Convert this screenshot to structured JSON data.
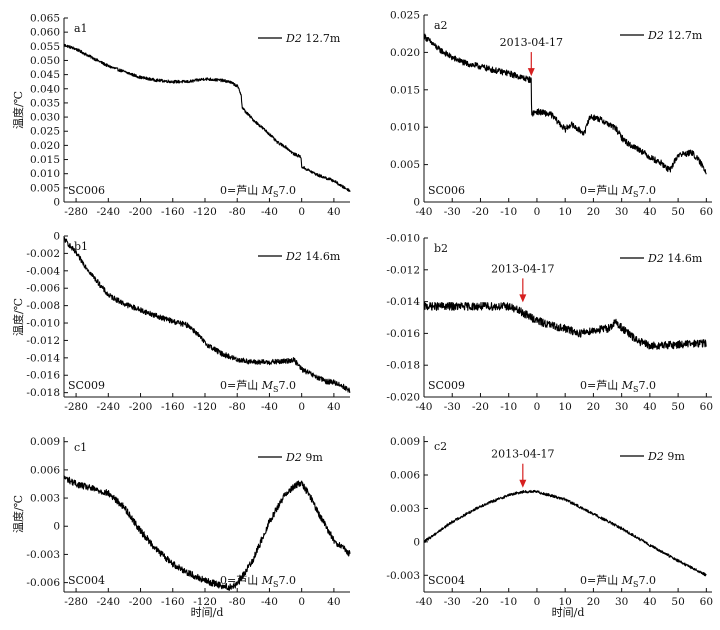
{
  "figure": {
    "ylabel": "温度/℃",
    "xlabel": "时间/d",
    "event_label_prefix": "0=芦山",
    "event_label_ms": "M",
    "event_label_sub": "S",
    "event_label_mag": "7.0",
    "date_annotation": "2013-04-17"
  },
  "chart_data": [
    {
      "id": "a1",
      "type": "line",
      "panel_label": "a1",
      "station": "SC006",
      "legend": "D2 12.7m",
      "xlim": [
        -295,
        60
      ],
      "ylim": [
        0,
        0.065
      ],
      "xticks": [
        -280,
        -240,
        -200,
        -160,
        -120,
        -80,
        -40,
        0,
        40
      ],
      "yticks": [
        0,
        0.005,
        0.01,
        0.015,
        0.02,
        0.025,
        0.03,
        0.035,
        0.04,
        0.045,
        0.05,
        0.055,
        0.06,
        0.065
      ],
      "ytick_labels": [
        "0",
        "0.005",
        "0.010",
        "0.015",
        "0.020",
        "0.025",
        "0.030",
        "0.035",
        "0.040",
        "0.045",
        "0.050",
        "0.055",
        "0.060",
        "0.065"
      ],
      "noise": 0.0005,
      "x": [
        -295,
        -280,
        -260,
        -240,
        -220,
        -200,
        -180,
        -160,
        -140,
        -120,
        -100,
        -90,
        -80,
        -75,
        -74,
        -70,
        -60,
        -50,
        -40,
        -30,
        -20,
        -10,
        -1,
        0,
        10,
        20,
        30,
        40,
        50,
        60
      ],
      "y": [
        0.0555,
        0.054,
        0.051,
        0.048,
        0.046,
        0.044,
        0.043,
        0.0425,
        0.0425,
        0.0435,
        0.043,
        0.0425,
        0.041,
        0.038,
        0.0335,
        0.032,
        0.029,
        0.0265,
        0.024,
        0.021,
        0.0195,
        0.017,
        0.016,
        0.0125,
        0.011,
        0.0095,
        0.0085,
        0.0075,
        0.0055,
        0.004
      ],
      "annotation": null
    },
    {
      "id": "a2",
      "type": "line",
      "panel_label": "a2",
      "station": "SC006",
      "legend": "D2 12.7m",
      "xlim": [
        -40,
        62
      ],
      "ylim": [
        0,
        0.025
      ],
      "xticks": [
        -40,
        -30,
        -20,
        -10,
        0,
        10,
        20,
        30,
        40,
        50,
        60
      ],
      "yticks": [
        0,
        0.005,
        0.01,
        0.015,
        0.02,
        0.025
      ],
      "ytick_labels": [
        "0",
        "0.005",
        "0.010",
        "0.015",
        "0.020",
        "0.025"
      ],
      "noise": 0.0004,
      "x": [
        -40,
        -38,
        -35,
        -30,
        -25,
        -20,
        -15,
        -10,
        -5,
        -2,
        -1.9,
        0,
        5,
        8,
        10,
        12,
        15,
        17,
        18,
        19,
        22,
        25,
        28,
        30,
        33,
        36,
        40,
        44,
        47,
        50,
        55,
        58,
        60
      ],
      "y": [
        0.0222,
        0.0215,
        0.0205,
        0.0193,
        0.0185,
        0.0181,
        0.0176,
        0.0172,
        0.0166,
        0.0163,
        0.0118,
        0.0121,
        0.0117,
        0.0105,
        0.0097,
        0.0104,
        0.0096,
        0.0092,
        0.0108,
        0.0114,
        0.0111,
        0.0105,
        0.0098,
        0.0086,
        0.0076,
        0.0071,
        0.006,
        0.0052,
        0.0042,
        0.0063,
        0.0066,
        0.0052,
        0.004
      ],
      "annotation": {
        "x": -2,
        "y": 0.0163
      }
    },
    {
      "id": "b1",
      "type": "line",
      "panel_label": "b1",
      "station": "SC009",
      "legend": "D2 14.6m",
      "xlim": [
        -295,
        60
      ],
      "ylim": [
        -0.0185,
        0
      ],
      "xticks": [
        -280,
        -240,
        -200,
        -160,
        -120,
        -80,
        -40,
        0,
        40
      ],
      "yticks": [
        -0.018,
        -0.016,
        -0.014,
        -0.012,
        -0.01,
        -0.008,
        -0.006,
        -0.004,
        -0.002,
        0
      ],
      "ytick_labels": [
        "-0.018",
        "-0.016",
        "-0.014",
        "-0.012",
        "-0.010",
        "-0.008",
        "-0.006",
        "-0.004",
        "-0.002",
        "0"
      ],
      "noise": 0.0003,
      "x": [
        -295,
        -280,
        -260,
        -240,
        -220,
        -200,
        -180,
        -160,
        -140,
        -130,
        -120,
        -100,
        -80,
        -60,
        -40,
        -20,
        -10,
        0,
        10,
        20,
        30,
        40,
        50,
        60
      ],
      "y": [
        -0.0003,
        -0.002,
        -0.0045,
        -0.0068,
        -0.0078,
        -0.0085,
        -0.0092,
        -0.0098,
        -0.0103,
        -0.0112,
        -0.0123,
        -0.0135,
        -0.0142,
        -0.0145,
        -0.0145,
        -0.0144,
        -0.0142,
        -0.0153,
        -0.0158,
        -0.0163,
        -0.0167,
        -0.0168,
        -0.0172,
        -0.0178
      ],
      "annotation": null
    },
    {
      "id": "b2",
      "type": "line",
      "panel_label": "b2",
      "station": "SC009",
      "legend": "D2 14.6m",
      "xlim": [
        -40,
        62
      ],
      "ylim": [
        -0.02,
        -0.01
      ],
      "xticks": [
        -40,
        -30,
        -20,
        -10,
        0,
        10,
        20,
        30,
        40,
        50,
        60
      ],
      "yticks": [
        -0.02,
        -0.018,
        -0.016,
        -0.014,
        -0.012,
        -0.01
      ],
      "ytick_labels": [
        "-0.020",
        "-0.018",
        "-0.016",
        "-0.014",
        "-0.012",
        "-0.010"
      ],
      "noise": 0.00025,
      "x": [
        -40,
        -30,
        -20,
        -10,
        -5,
        0,
        5,
        10,
        15,
        20,
        25,
        28,
        31,
        35,
        40,
        50,
        60
      ],
      "y": [
        -0.0143,
        -0.0143,
        -0.0143,
        -0.0143,
        -0.0147,
        -0.0152,
        -0.0155,
        -0.0157,
        -0.016,
        -0.0158,
        -0.0157,
        -0.0153,
        -0.0158,
        -0.0164,
        -0.0168,
        -0.0167,
        -0.0166
      ],
      "annotation": {
        "x": -5,
        "y": -0.0143
      }
    },
    {
      "id": "c1",
      "type": "line",
      "panel_label": "c1",
      "station": "SC004",
      "legend": "D2 9m",
      "xlim": [
        -295,
        60
      ],
      "ylim": [
        -0.007,
        0.0095
      ],
      "xticks": [
        -280,
        -240,
        -200,
        -160,
        -120,
        -80,
        -40,
        0,
        40
      ],
      "yticks": [
        -0.006,
        -0.003,
        0,
        0.003,
        0.006,
        0.009
      ],
      "ytick_labels": [
        "-0.006",
        "-0.003",
        "0",
        "0.003",
        "0.006",
        "0.009"
      ],
      "noise": 0.00035,
      "x": [
        -295,
        -280,
        -260,
        -240,
        -220,
        -200,
        -180,
        -160,
        -140,
        -120,
        -100,
        -90,
        -80,
        -60,
        -40,
        -20,
        -5,
        0,
        10,
        20,
        40,
        60
      ],
      "y": [
        0.0052,
        0.0045,
        0.004,
        0.0035,
        0.002,
        -0.0005,
        -0.0025,
        -0.004,
        -0.005,
        -0.0058,
        -0.0063,
        -0.0065,
        -0.0062,
        -0.0035,
        0.0005,
        0.0035,
        0.0045,
        0.0045,
        0.0033,
        0.0015,
        -0.0015,
        -0.003
      ],
      "annotation": null
    },
    {
      "id": "c2",
      "type": "line",
      "panel_label": "c2",
      "station": "SC004",
      "legend": "D2 9m",
      "xlim": [
        -40,
        62
      ],
      "ylim": [
        -0.0045,
        0.0095
      ],
      "xticks": [
        -40,
        -30,
        -20,
        -10,
        0,
        10,
        20,
        30,
        40,
        50,
        60
      ],
      "yticks": [
        -0.003,
        0,
        0.003,
        0.006,
        0.009
      ],
      "ytick_labels": [
        "-0.003",
        "0",
        "0.003",
        "0.006",
        "0.009"
      ],
      "noise": 0.00012,
      "x": [
        -40,
        -30,
        -20,
        -10,
        -5,
        0,
        10,
        20,
        30,
        40,
        50,
        60
      ],
      "y": [
        0,
        0.0018,
        0.0032,
        0.0042,
        0.0045,
        0.0045,
        0.0038,
        0.0025,
        0.0012,
        -0.0003,
        -0.0017,
        -0.003
      ],
      "annotation": {
        "x": -5,
        "y": 0.0045
      }
    }
  ]
}
